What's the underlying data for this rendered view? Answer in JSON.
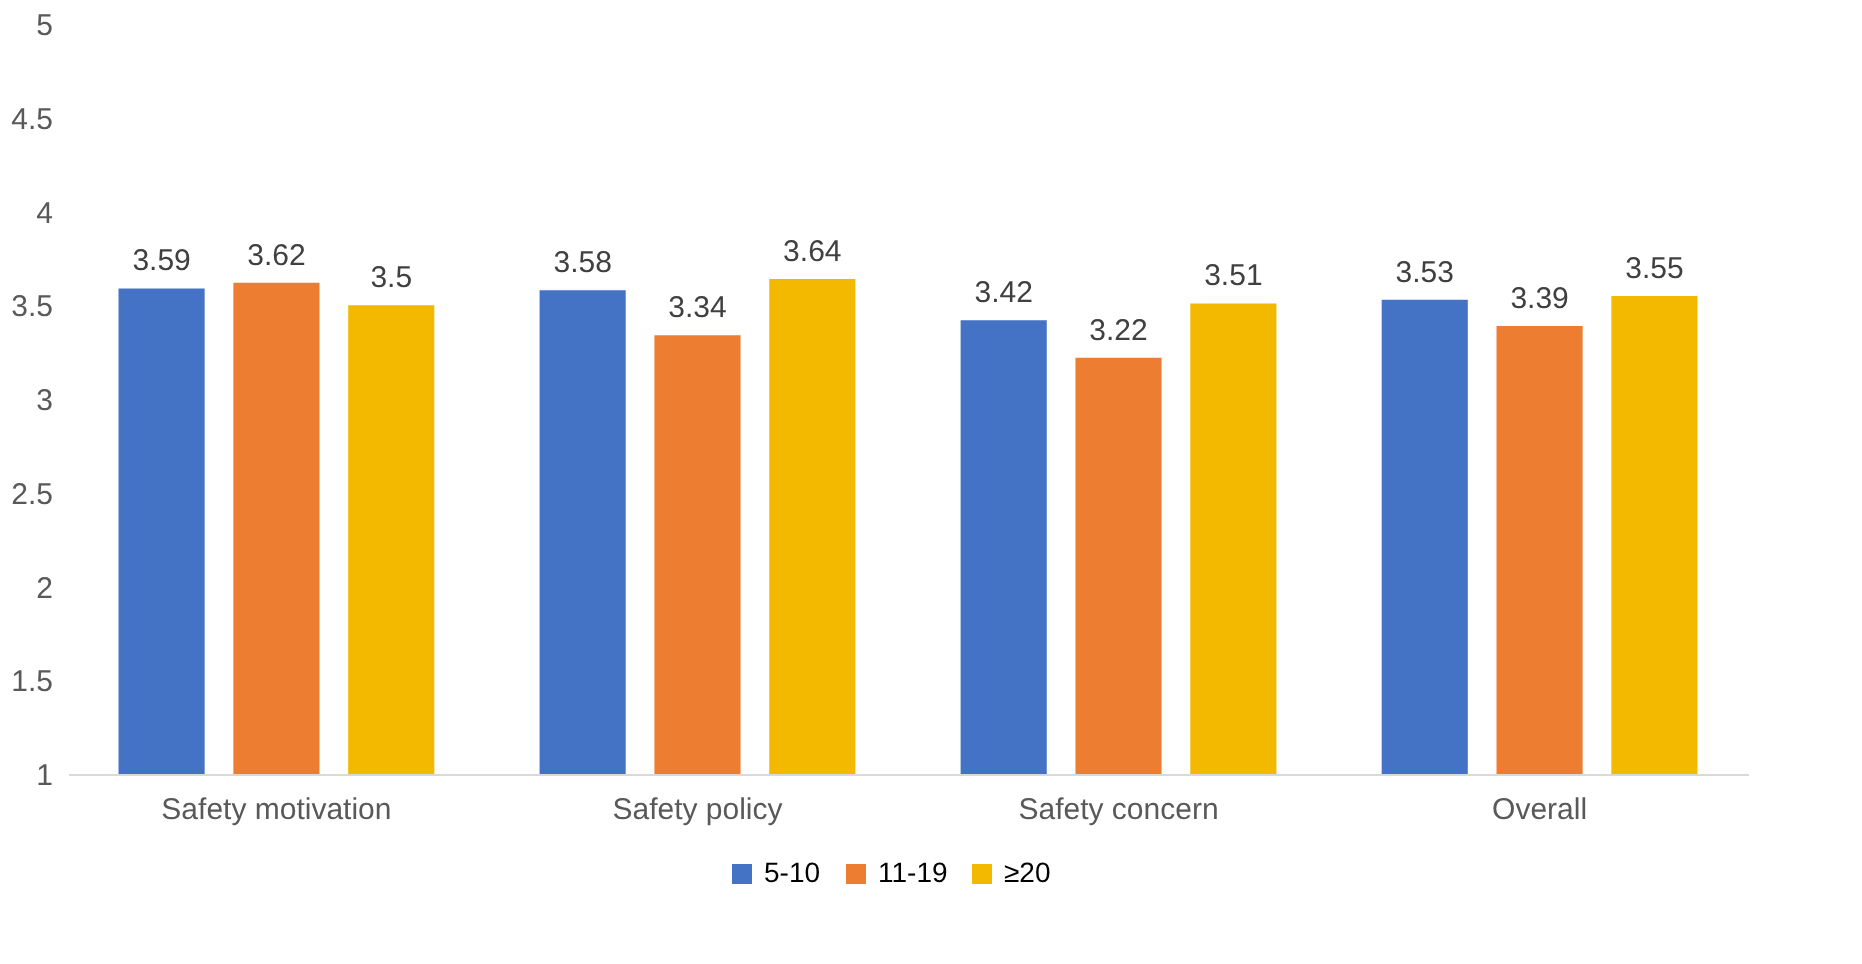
{
  "chart_data": {
    "type": "bar",
    "categories": [
      "Safety motivation",
      "Safety policy",
      "Safety concern",
      "Overall"
    ],
    "series": [
      {
        "name": "5-10",
        "color": "#4472c4",
        "values": [
          3.59,
          3.58,
          3.42,
          3.53
        ]
      },
      {
        "name": "11-19",
        "color": "#ed7d31",
        "values": [
          3.62,
          3.34,
          3.22,
          3.39
        ]
      },
      {
        "name": "≥20",
        "color": "#f2b900",
        "values": [
          3.5,
          3.64,
          3.51,
          3.55
        ]
      }
    ],
    "ylim": [
      1,
      5
    ],
    "yticks": [
      1,
      1.5,
      2,
      2.5,
      3,
      3.5,
      4,
      4.5,
      5
    ],
    "grid": false,
    "legend": "bottom",
    "data_labels": true
  }
}
